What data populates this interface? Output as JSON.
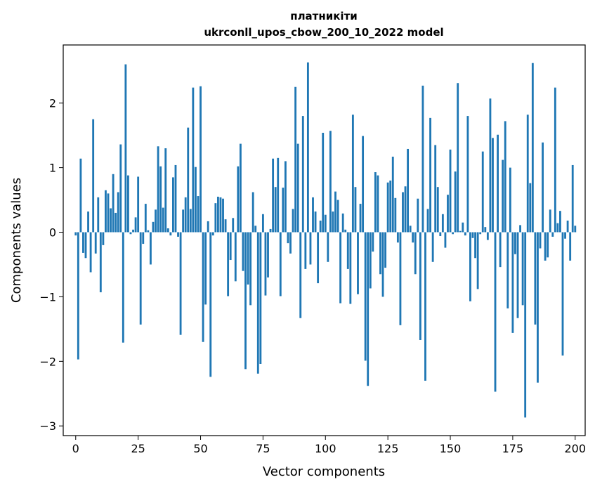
{
  "chart_data": {
    "type": "bar",
    "title": [
      "платникіти",
      "ukrconll_upos_cbow_200_10_2022 model"
    ],
    "xlabel": "Vector components",
    "ylabel": "Components values",
    "xlim": [
      -5,
      204
    ],
    "ylim": [
      -3.15,
      2.9
    ],
    "xticks": [
      0,
      25,
      50,
      75,
      100,
      125,
      150,
      175,
      200
    ],
    "yticks": [
      -3,
      -2,
      -1,
      0,
      1,
      2
    ],
    "bar_color": "#1f77b4",
    "values": [
      -0.05,
      -1.97,
      1.14,
      -0.32,
      -0.4,
      0.32,
      -0.62,
      1.75,
      -0.33,
      0.54,
      -0.93,
      -0.2,
      0.65,
      0.6,
      0.37,
      0.9,
      0.3,
      0.62,
      1.36,
      -1.71,
      2.6,
      0.88,
      -0.03,
      0.04,
      0.23,
      0.86,
      -1.43,
      -0.18,
      0.44,
      0.03,
      -0.5,
      0.16,
      0.35,
      1.33,
      1.02,
      0.38,
      1.3,
      0.06,
      -0.05,
      0.85,
      1.04,
      -0.07,
      -1.59,
      0.35,
      0.54,
      1.62,
      0.36,
      2.24,
      1.01,
      0.56,
      2.26,
      -1.7,
      -1.12,
      0.17,
      -2.24,
      -0.05,
      0.45,
      0.55,
      0.54,
      0.52,
      0.2,
      -0.99,
      -0.43,
      0.22,
      -0.76,
      1.02,
      1.37,
      -0.6,
      -2.12,
      -0.81,
      -1.13,
      0.62,
      0.1,
      -2.19,
      -2.04,
      0.28,
      -0.98,
      -0.7,
      0.05,
      1.14,
      0.7,
      1.15,
      -0.99,
      0.69,
      1.1,
      -0.17,
      -0.33,
      0.36,
      2.25,
      1.37,
      -1.33,
      1.8,
      -0.57,
      2.63,
      -0.5,
      0.54,
      0.32,
      -0.79,
      0.18,
      1.54,
      0.27,
      -0.46,
      1.57,
      0.32,
      0.63,
      0.5,
      -1.1,
      0.29,
      0.04,
      -0.57,
      -1.11,
      1.82,
      0.7,
      -0.96,
      0.44,
      1.49,
      -1.99,
      -2.38,
      -0.87,
      -0.3,
      0.93,
      0.88,
      -0.65,
      -1.0,
      -0.55,
      0.77,
      0.8,
      1.17,
      0.53,
      -0.16,
      -1.44,
      0.62,
      0.71,
      1.29,
      0.1,
      -0.16,
      -0.65,
      0.52,
      -1.67,
      2.27,
      -2.3,
      0.36,
      1.77,
      -0.46,
      1.35,
      0.7,
      -0.06,
      0.28,
      -0.24,
      0.58,
      1.28,
      -0.03,
      0.94,
      2.31,
      0.02,
      0.15,
      -0.05,
      1.8,
      -1.07,
      -0.09,
      -0.4,
      -0.88,
      -0.03,
      1.25,
      0.08,
      -0.12,
      2.07,
      1.46,
      -2.47,
      1.51,
      -0.54,
      1.12,
      1.72,
      -1.18,
      1.0,
      -1.56,
      -0.34,
      -1.33,
      0.11,
      -1.13,
      -2.87,
      1.82,
      0.76,
      2.62,
      -1.43,
      -2.33,
      -0.25,
      1.39,
      -0.44,
      -0.39,
      0.35,
      -0.07,
      2.24,
      0.14,
      0.33,
      -1.91,
      -0.1,
      0.18,
      -0.44,
      1.04,
      0.1
    ]
  }
}
